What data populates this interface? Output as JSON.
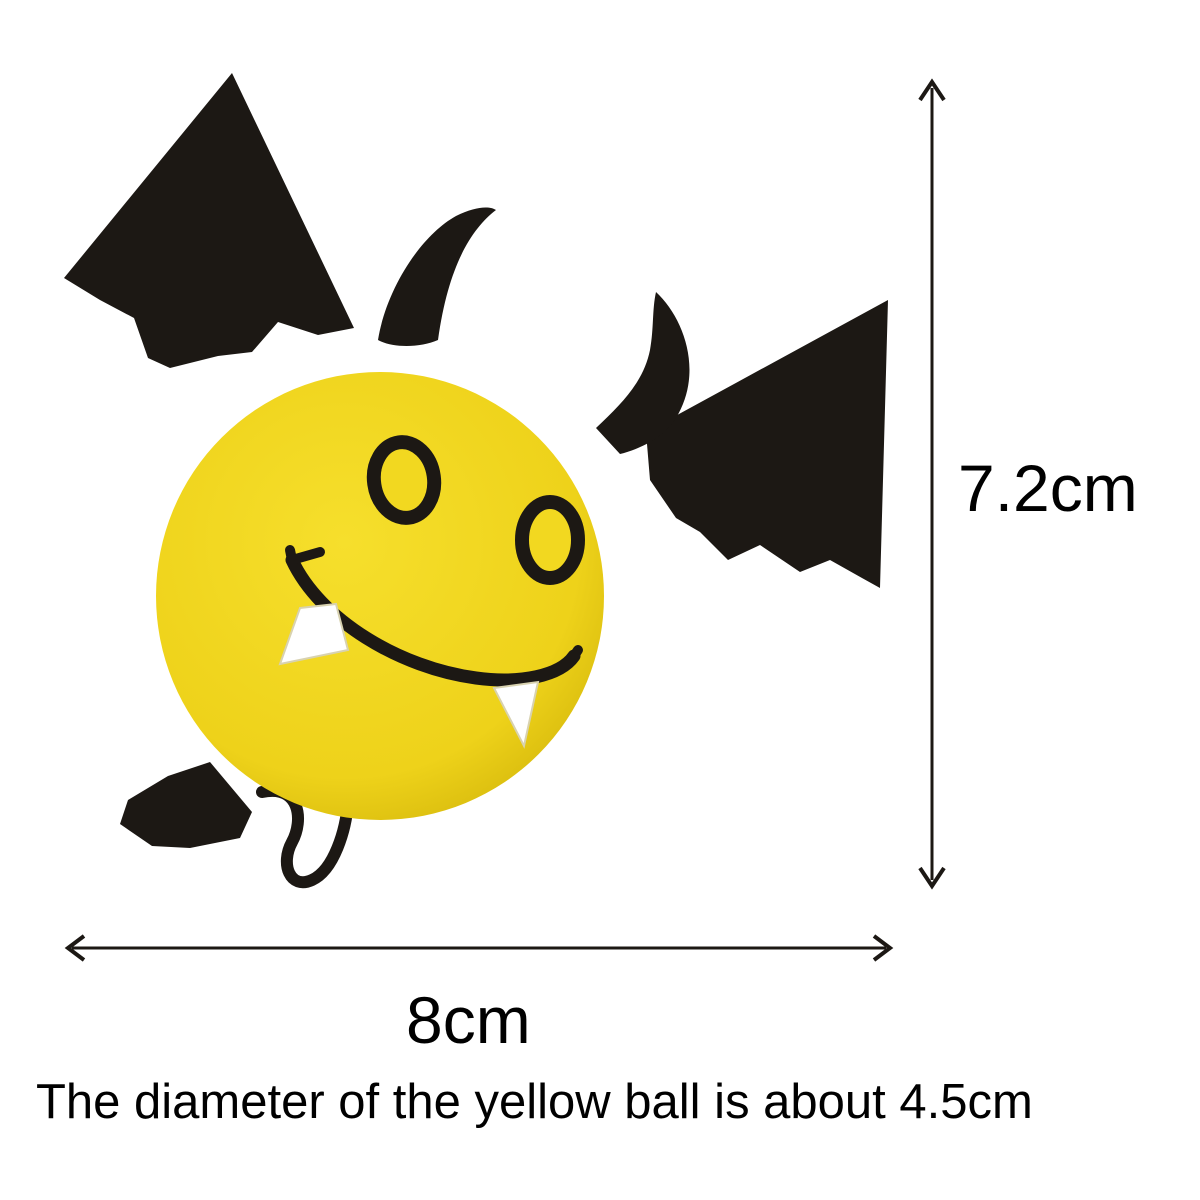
{
  "product": {
    "name_icon": "yellow-bat-devil-ball-icon",
    "colors": {
      "ball": "#f2d820",
      "wing": "#1c1814",
      "fang": "#ffffff"
    }
  },
  "dimensions": {
    "height": "7.2cm",
    "width": "8cm",
    "caption": "The diameter of the yellow ball is about 4.5cm"
  }
}
